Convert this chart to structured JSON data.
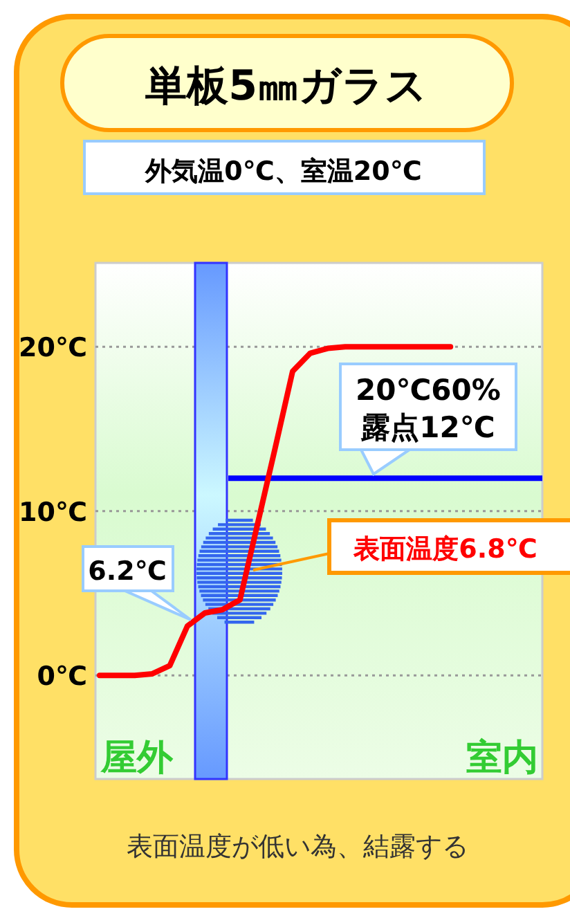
{
  "chart_data": {
    "type": "line",
    "title": "単板5㎜ガラス",
    "subtitle": "外気温0℃、室温20℃",
    "categories": [
      null,
      null,
      null,
      null,
      null,
      null,
      null,
      null,
      null,
      null,
      null,
      null,
      null,
      null,
      null,
      null,
      null,
      null,
      null,
      null,
      null,
      null,
      null,
      null,
      null,
      null
    ],
    "series": [
      {
        "color": "#ff0000",
        "values": [
          0,
          0,
          0,
          0.1,
          0.6,
          3.0,
          3.8,
          4.0,
          4.6,
          9.2,
          13.8,
          18.5,
          19.6,
          19.9,
          20,
          20,
          20,
          20,
          20,
          20,
          20,
          null,
          null,
          null,
          null,
          null
        ]
      }
    ],
    "ylim": [
      -6.3,
      25.1
    ],
    "yticks": [
      {
        "value": 0,
        "label": "0℃"
      },
      {
        "value": 10,
        "label": "10℃"
      },
      {
        "value": 20,
        "label": "20℃"
      }
    ],
    "grid": "y",
    "tick_labels": "y",
    "ref_lines": [
      {
        "axis": "y",
        "value": 12,
        "label": "20℃60%\n露点12℃",
        "color": "#0000ff"
      }
    ],
    "annotations": [
      "6.2℃",
      "表面温度6.8℃",
      "屋外",
      "室内",
      "表面温度が低い為、結露する"
    ]
  }
}
